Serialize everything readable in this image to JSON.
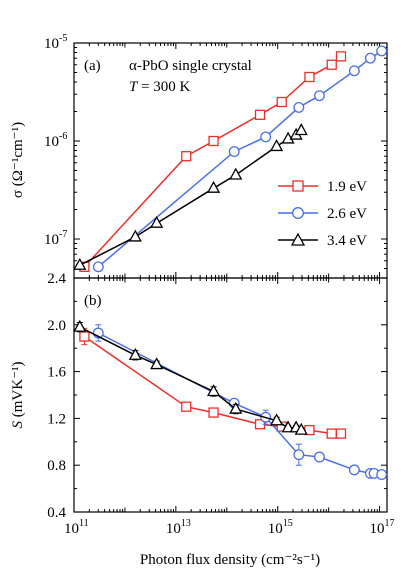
{
  "figure": {
    "xlabel": "Photon flux density (cm⁻²s⁻¹)",
    "x_tick_labels": [
      "10",
      "10",
      "10",
      "10",
      "10",
      "10",
      "10"
    ],
    "x_tick_exponents": [
      "11",
      "13",
      "15",
      "17"
    ],
    "colors": {
      "1.9 eV": "#e8302a",
      "2.6 eV": "#4a6fe3",
      "3.4 eV": "#000000"
    }
  },
  "chart_data": [
    {
      "type": "line",
      "panel_label": "(a)",
      "annotation_line1": "α-PbO single crystal",
      "annotation_line2_italic": "T",
      "annotation_line2_rest": " = 300 K",
      "ylabel": "σ (Ω⁻¹cm⁻¹)",
      "xscale": "log",
      "yscale": "log",
      "xlim": [
        100000000000.0,
        1.4e+17
      ],
      "ylim": [
        4e-08,
        1e-05
      ],
      "x_ticks_major": [
        100000000000.0,
        10000000000000.0,
        1000000000000000.0,
        1e+17
      ],
      "y_ticks_major": [
        {
          "value": 1e-07,
          "base": "10",
          "exp": "-7"
        },
        {
          "value": 1e-06,
          "base": "10",
          "exp": "-6"
        },
        {
          "value": 1e-05,
          "base": "10",
          "exp": "-5"
        }
      ],
      "legend": "right",
      "series": [
        {
          "name": "1.9 eV",
          "marker": "square",
          "color": "#e8302a",
          "x": [
            160000000000.0,
            16000000000000.0,
            55000000000000.0,
            450000000000000.0,
            1200000000000000.0,
            4200000000000000.0,
            1.15e+16,
            1.75e+16
          ],
          "y": [
            5.2e-08,
            7e-07,
            1e-06,
            1.85e-06,
            2.5e-06,
            4.5e-06,
            6e-06,
            7.3e-06
          ]
        },
        {
          "name": "2.6 eV",
          "marker": "circle",
          "color": "#4a6fe3",
          "x": [
            300000000000.0,
            140000000000000.0,
            580000000000000.0,
            2600000000000000.0,
            6600000000000000.0,
            3.2e+16,
            6.6e+16,
            1.1e+17
          ],
          "y": [
            5.2e-08,
            7.8e-07,
            1.1e-06,
            2.2e-06,
            2.9e-06,
            5.2e-06,
            7e-06,
            8.3e-06
          ]
        },
        {
          "name": "3.4 eV",
          "marker": "triangle",
          "color": "#000000",
          "x": [
            130000000000.0,
            1600000000000.0,
            4200000000000.0,
            55000000000000.0,
            150000000000000.0,
            950000000000000.0,
            1600000000000000.0,
            2300000000000000.0,
            2900000000000000.0
          ],
          "y": [
            5.4e-08,
            1.05e-07,
            1.45e-07,
            3.3e-07,
            4.5e-07,
            8.8e-07,
            1.05e-06,
            1.15e-06,
            1.28e-06
          ]
        }
      ]
    },
    {
      "type": "line",
      "panel_label": "(b)",
      "ylabel_italic": "S",
      "ylabel_rest": " (mVK⁻¹)",
      "xscale": "log",
      "yscale": "linear",
      "xlim": [
        100000000000.0,
        1.4e+17
      ],
      "ylim": [
        0.4,
        2.4
      ],
      "x_ticks_major": [
        100000000000.0,
        10000000000000.0,
        1000000000000000.0,
        1e+17
      ],
      "y_ticks_major": [
        {
          "value": 0.4,
          "label": "0.4"
        },
        {
          "value": 0.8,
          "label": "0.8"
        },
        {
          "value": 1.2,
          "label": "1.2"
        },
        {
          "value": 1.6,
          "label": "1.6"
        },
        {
          "value": 2.0,
          "label": "2.0"
        },
        {
          "value": 2.4,
          "label": "2.4"
        }
      ],
      "series": [
        {
          "name": "1.9 eV",
          "marker": "square",
          "color": "#e8302a",
          "x": [
            160000000000.0,
            16000000000000.0,
            55000000000000.0,
            450000000000000.0,
            1200000000000000.0,
            4200000000000000.0,
            1.15e+16,
            1.75e+16
          ],
          "y": [
            1.9,
            1.3,
            1.25,
            1.15,
            1.13,
            1.1,
            1.07,
            1.07
          ],
          "yerr": [
            0.07,
            0.03,
            0.02,
            0.03,
            0.02,
            0.02,
            0.02,
            0.02
          ]
        },
        {
          "name": "2.6 eV",
          "marker": "circle",
          "color": "#4a6fe3",
          "x": [
            300000000000.0,
            140000000000000.0,
            580000000000000.0,
            2600000000000000.0,
            6600000000000000.0,
            3.2e+16,
            6.6e+16,
            7.8e+16,
            1.1e+17
          ],
          "y": [
            1.93,
            1.33,
            1.21,
            0.89,
            0.87,
            0.76,
            0.73,
            0.73,
            0.72
          ],
          "yerr": [
            0.07,
            0.03,
            0.06,
            0.09,
            0.02,
            0.02,
            0.02,
            0.02,
            0.02
          ]
        },
        {
          "name": "3.4 eV",
          "marker": "triangle",
          "color": "#000000",
          "x": [
            130000000000.0,
            1600000000000.0,
            4200000000000.0,
            55000000000000.0,
            150000000000000.0,
            950000000000000.0,
            1600000000000000.0,
            2300000000000000.0,
            2900000000000000.0
          ],
          "y": [
            1.98,
            1.74,
            1.66,
            1.43,
            1.28,
            1.18,
            1.12,
            1.12,
            1.1
          ],
          "yerr": [
            0.04,
            0.04,
            0.03,
            0.04,
            0.04,
            0.03,
            0.02,
            0.02,
            0.02
          ]
        }
      ]
    }
  ]
}
